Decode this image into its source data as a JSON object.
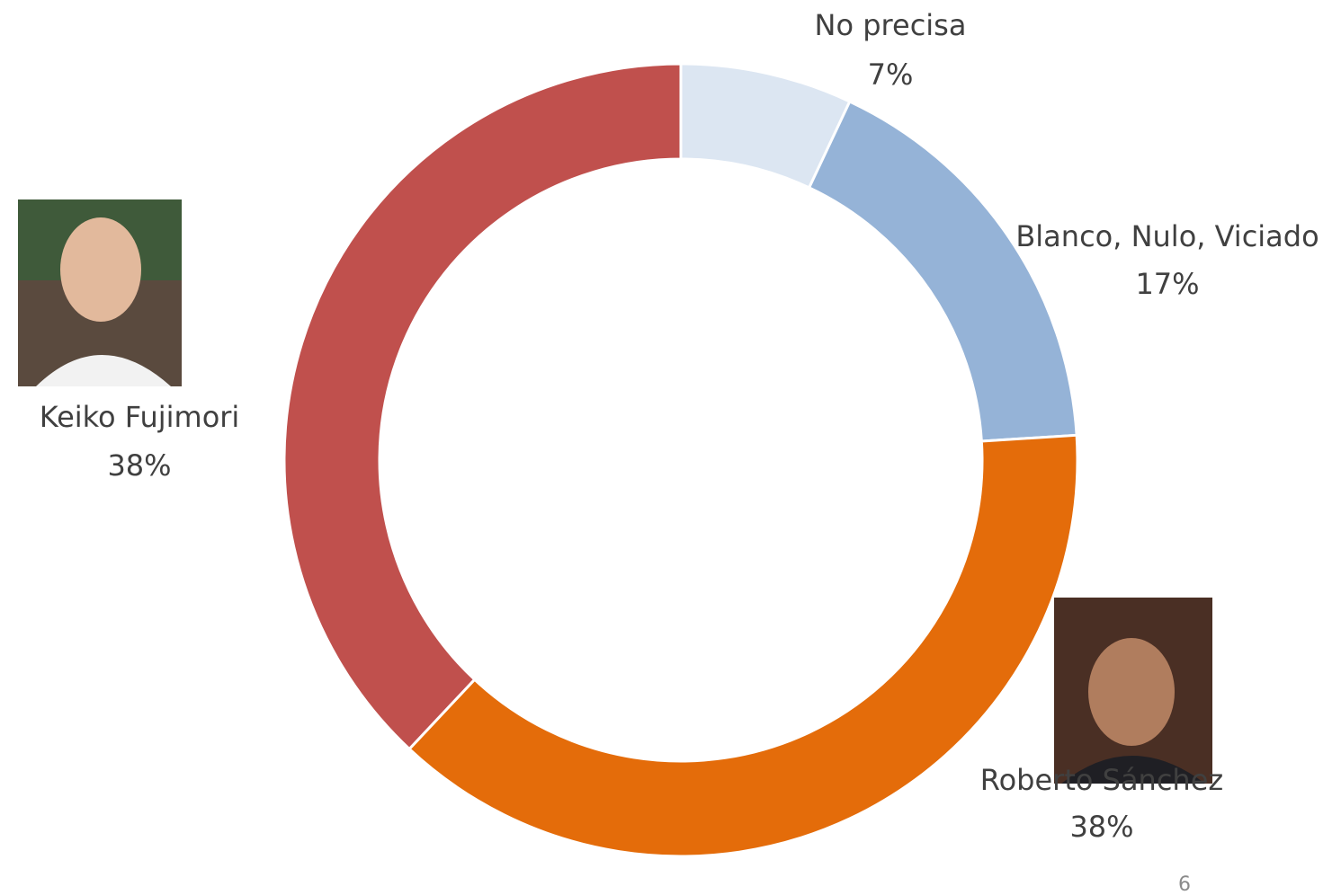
{
  "chart_data": {
    "type": "donut",
    "categories": [
      "No precisa",
      "Blanco, Nulo, Viciado",
      "Roberto Sánchez",
      "Keiko Fujimori"
    ],
    "values": [
      7,
      17,
      38,
      38
    ],
    "value_labels": [
      "7%",
      "17%",
      "38%",
      "38%"
    ],
    "colors": [
      "#dce6f2",
      "#95b3d7",
      "#e46c0a",
      "#c0504d"
    ]
  },
  "page_number": "6"
}
